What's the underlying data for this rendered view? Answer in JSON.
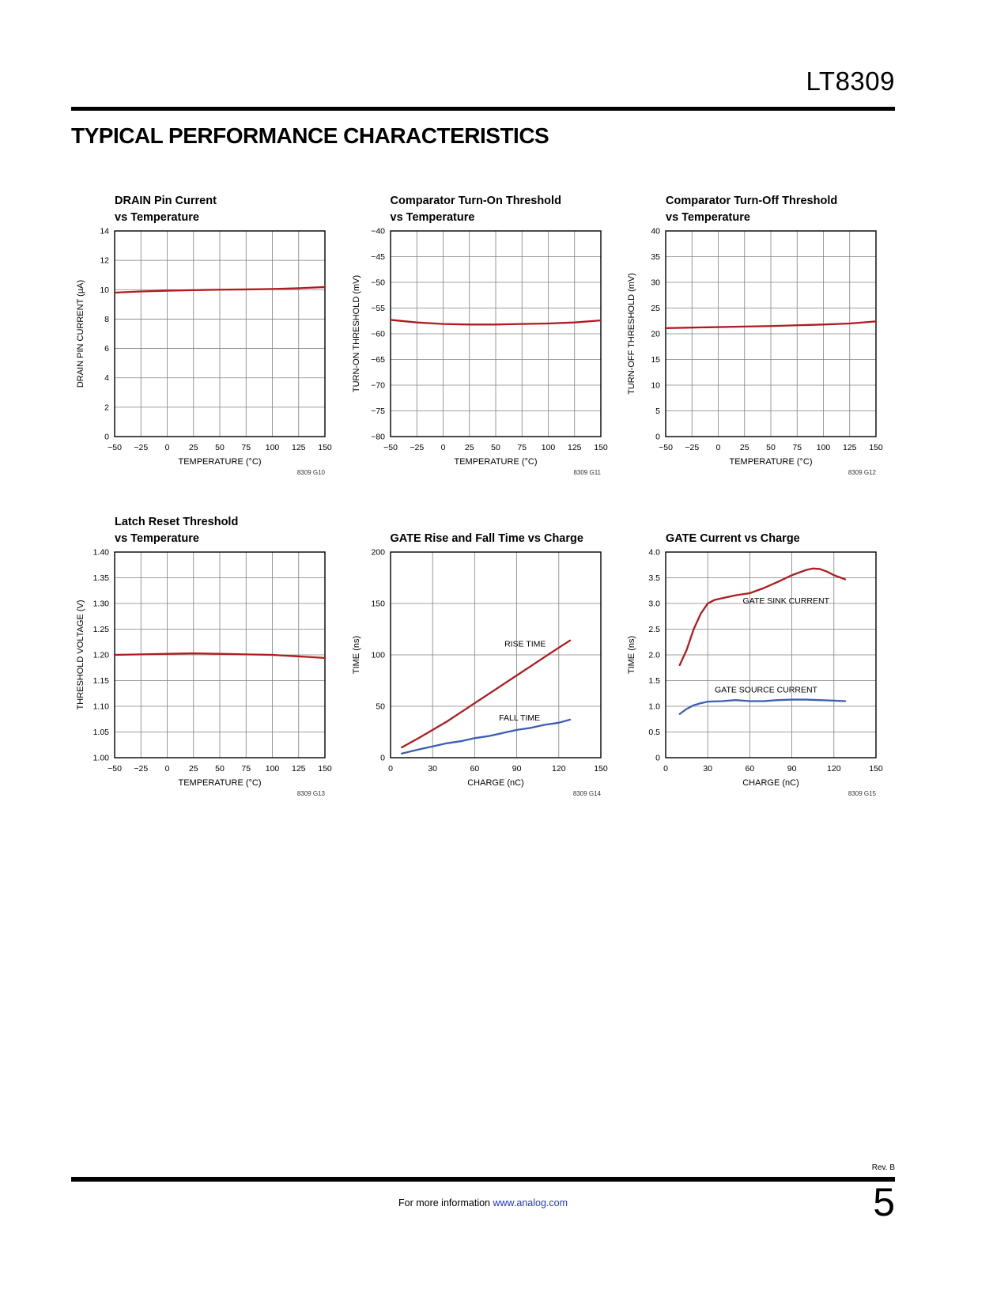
{
  "page": {
    "part_number": "LT8309",
    "section_title": "TYPICAL PERFORMANCE CHARACTERISTICS",
    "footer": {
      "rev": "Rev. B",
      "info_prefix": "For more information",
      "link_text": "www.analog.com",
      "page_number": "5"
    }
  },
  "colors": {
    "series_red": "#ae1c21",
    "series_blue": "#3c5fae",
    "grid": "#808080",
    "axis": "#000000",
    "link": "#2136d4"
  },
  "chart_data": [
    {
      "id": "drain-pin-current-vs-temperature",
      "type": "line",
      "title_lines": [
        "DRAIN Pin Current",
        "vs Temperature"
      ],
      "xlabel": "TEMPERATURE (°C)",
      "ylabel": "DRAIN PIN CURRENT (µA)",
      "xlim": [
        -50,
        150
      ],
      "ylim": [
        0,
        14
      ],
      "xtick_vals": [
        -50,
        -25,
        0,
        25,
        50,
        75,
        100,
        125,
        150
      ],
      "xtick_labels": [
        "−50",
        "−25",
        "0",
        "25",
        "50",
        "75",
        "100",
        "125",
        "150"
      ],
      "ytick_vals": [
        0,
        2,
        4,
        6,
        8,
        10,
        12,
        14
      ],
      "ytick_labels": [
        "0",
        "2",
        "4",
        "6",
        "8",
        "10",
        "12",
        "14"
      ],
      "graph_id": "8309 G10",
      "series": [
        {
          "name": "drain-pin-current",
          "color": "#ae1c21",
          "x": [
            -50,
            -25,
            0,
            25,
            50,
            75,
            100,
            125,
            150
          ],
          "y": [
            9.8,
            9.88,
            9.93,
            9.97,
            10.0,
            10.02,
            10.05,
            10.1,
            10.18
          ]
        }
      ],
      "annotations": []
    },
    {
      "id": "comparator-turn-on-threshold-vs-temperature",
      "type": "line",
      "title_lines": [
        "Comparator Turn-On Threshold",
        "vs Temperature"
      ],
      "xlabel": "TEMPERATURE (°C)",
      "ylabel": "TURN-ON THRESHOLD (mV)",
      "xlim": [
        -50,
        150
      ],
      "ylim": [
        -80,
        -40
      ],
      "xtick_vals": [
        -50,
        -25,
        0,
        25,
        50,
        75,
        100,
        125,
        150
      ],
      "xtick_labels": [
        "−50",
        "−25",
        "0",
        "25",
        "50",
        "75",
        "100",
        "125",
        "150"
      ],
      "ytick_vals": [
        -80,
        -75,
        -70,
        -65,
        -60,
        -55,
        -50,
        -45,
        -40
      ],
      "ytick_labels": [
        "−80",
        "−75",
        "−70",
        "−65",
        "−60",
        "−55",
        "−50",
        "−45",
        "−40"
      ],
      "graph_id": "8309 G11",
      "series": [
        {
          "name": "turn-on-threshold",
          "color": "#ae1c21",
          "x": [
            -50,
            -25,
            0,
            25,
            50,
            75,
            100,
            125,
            150
          ],
          "y": [
            -57.3,
            -57.8,
            -58.1,
            -58.2,
            -58.2,
            -58.1,
            -58.0,
            -57.8,
            -57.4
          ]
        }
      ],
      "annotations": []
    },
    {
      "id": "comparator-turn-off-threshold-vs-temperature",
      "type": "line",
      "title_lines": [
        "Comparator Turn-Off Threshold",
        "vs Temperature"
      ],
      "xlabel": "TEMPERATURE (°C)",
      "ylabel": "TURN-OFF THRESHOLD (mV)",
      "xlim": [
        -50,
        150
      ],
      "ylim": [
        0,
        40
      ],
      "xtick_vals": [
        -50,
        -25,
        0,
        25,
        50,
        75,
        100,
        125,
        150
      ],
      "xtick_labels": [
        "−50",
        "−25",
        "0",
        "25",
        "50",
        "75",
        "100",
        "125",
        "150"
      ],
      "ytick_vals": [
        0,
        5,
        10,
        15,
        20,
        25,
        30,
        35,
        40
      ],
      "ytick_labels": [
        "0",
        "5",
        "10",
        "15",
        "20",
        "25",
        "30",
        "35",
        "40"
      ],
      "graph_id": "8309 G12",
      "series": [
        {
          "name": "turn-off-threshold",
          "color": "#ae1c21",
          "x": [
            -50,
            -25,
            0,
            25,
            50,
            75,
            100,
            125,
            150
          ],
          "y": [
            21.1,
            21.2,
            21.3,
            21.4,
            21.5,
            21.65,
            21.8,
            22.0,
            22.4
          ]
        }
      ],
      "annotations": []
    },
    {
      "id": "latch-reset-threshold-vs-temperature",
      "type": "line",
      "title_lines": [
        "Latch Reset Threshold",
        "vs Temperature"
      ],
      "xlabel": "TEMPERATURE (°C)",
      "ylabel": "THRESHOLD VOLTAGE (V)",
      "xlim": [
        -50,
        150
      ],
      "ylim": [
        1.0,
        1.4
      ],
      "xtick_vals": [
        -50,
        -25,
        0,
        25,
        50,
        75,
        100,
        125,
        150
      ],
      "xtick_labels": [
        "−50",
        "−25",
        "0",
        "25",
        "50",
        "75",
        "100",
        "125",
        "150"
      ],
      "ytick_vals": [
        1.0,
        1.05,
        1.1,
        1.15,
        1.2,
        1.25,
        1.3,
        1.35,
        1.4
      ],
      "ytick_labels": [
        "1.00",
        "1.05",
        "1.10",
        "1.15",
        "1.20",
        "1.25",
        "1.30",
        "1.35",
        "1.40"
      ],
      "graph_id": "8309 G13",
      "series": [
        {
          "name": "latch-reset-threshold",
          "color": "#ae1c21",
          "x": [
            -50,
            -25,
            0,
            25,
            50,
            75,
            100,
            125,
            150
          ],
          "y": [
            1.2,
            1.201,
            1.202,
            1.203,
            1.202,
            1.201,
            1.2,
            1.197,
            1.194
          ]
        }
      ],
      "annotations": []
    },
    {
      "id": "gate-rise-and-fall-time-vs-charge",
      "type": "line",
      "title_lines": [
        "GATE Rise and Fall Time vs Charge"
      ],
      "xlabel": "CHARGE (nC)",
      "ylabel": "TIME (ns)",
      "xlim": [
        0,
        150
      ],
      "ylim": [
        0,
        200
      ],
      "xtick_vals": [
        0,
        30,
        60,
        90,
        120,
        150
      ],
      "xtick_labels": [
        "0",
        "30",
        "60",
        "90",
        "120",
        "150"
      ],
      "ytick_vals": [
        0,
        50,
        100,
        150,
        200
      ],
      "ytick_labels": [
        "0",
        "50",
        "100",
        "150",
        "200"
      ],
      "graph_id": "8309 G14",
      "series": [
        {
          "name": "rise-time",
          "color": "#ae1c21",
          "x": [
            8,
            20,
            30,
            40,
            50,
            60,
            70,
            80,
            90,
            100,
            110,
            120,
            128
          ],
          "y": [
            10,
            19,
            27,
            35,
            44,
            53,
            62,
            71,
            80,
            89,
            98,
            107,
            114
          ]
        },
        {
          "name": "fall-time",
          "color": "#3c5fae",
          "x": [
            8,
            20,
            30,
            40,
            50,
            60,
            70,
            80,
            90,
            100,
            110,
            120,
            128
          ],
          "y": [
            4,
            8,
            11,
            14,
            16,
            19,
            21,
            24,
            27,
            29,
            32,
            34,
            37
          ]
        }
      ],
      "annotations": [
        {
          "text": "RISE TIME",
          "x": 96,
          "y": 108,
          "anchor": "middle"
        },
        {
          "text": "FALL TIME",
          "x": 92,
          "y": 36,
          "anchor": "middle"
        }
      ]
    },
    {
      "id": "gate-current-vs-charge",
      "type": "line",
      "title_lines": [
        "GATE Current vs Charge"
      ],
      "xlabel": "CHARGE (nC)",
      "ylabel": "TIME (ns)",
      "xlim": [
        0,
        150
      ],
      "ylim": [
        0,
        4.0
      ],
      "xtick_vals": [
        0,
        30,
        60,
        90,
        120,
        150
      ],
      "xtick_labels": [
        "0",
        "30",
        "60",
        "90",
        "120",
        "150"
      ],
      "ytick_vals": [
        0,
        0.5,
        1.0,
        1.5,
        2.0,
        2.5,
        3.0,
        3.5,
        4.0
      ],
      "ytick_labels": [
        "0",
        "0.5",
        "1.0",
        "1.5",
        "2.0",
        "2.5",
        "3.0",
        "3.5",
        "4.0"
      ],
      "graph_id": "8309 G15",
      "series": [
        {
          "name": "gate-sink-current",
          "color": "#ae1c21",
          "x": [
            10,
            15,
            20,
            25,
            30,
            35,
            40,
            50,
            60,
            70,
            80,
            90,
            100,
            105,
            110,
            115,
            120,
            128
          ],
          "y": [
            1.8,
            2.1,
            2.5,
            2.8,
            3.0,
            3.07,
            3.1,
            3.16,
            3.2,
            3.3,
            3.42,
            3.55,
            3.65,
            3.68,
            3.67,
            3.62,
            3.55,
            3.47
          ]
        },
        {
          "name": "gate-source-current",
          "color": "#3c5fae",
          "x": [
            10,
            15,
            20,
            25,
            30,
            40,
            50,
            60,
            70,
            80,
            90,
            100,
            110,
            120,
            128
          ],
          "y": [
            0.85,
            0.95,
            1.02,
            1.06,
            1.09,
            1.1,
            1.12,
            1.1,
            1.1,
            1.12,
            1.13,
            1.13,
            1.12,
            1.11,
            1.1
          ]
        }
      ],
      "annotations": [
        {
          "text": "GATE SINK CURRENT",
          "x": 55,
          "y": 3.0,
          "anchor": "start"
        },
        {
          "text": "GATE SOURCE CURRENT",
          "x": 35,
          "y": 1.27,
          "anchor": "start"
        }
      ]
    }
  ]
}
